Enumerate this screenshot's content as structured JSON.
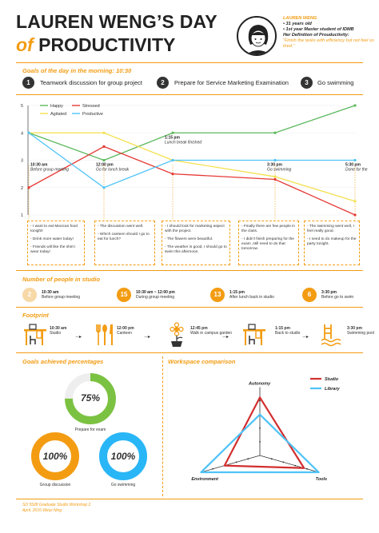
{
  "header": {
    "title_line1": "LAUREN WENG’S DAY",
    "title_of": "of",
    "title_line2": " PRODUCTIVITY"
  },
  "profile": {
    "name": "LAUREN WENG",
    "age": "• 31 years old",
    "role": "• 1st year Master student of IDMB",
    "definition_label": "Her Definition of Prouductivity:",
    "quote": "“Finish the tasks with efficiency but not feel so tired.”"
  },
  "goals": {
    "heading": "Goals of the day in the morning: 10:30",
    "items": [
      {
        "num": "1",
        "text": "Teamwork discussion for group project"
      },
      {
        "num": "2",
        "text": "Prepare for Service Marketing Examination"
      },
      {
        "num": "3",
        "text": "Go swimming"
      }
    ]
  },
  "chart_data": {
    "type": "line",
    "x": [
      "10:30 am",
      "12:00 pm",
      "1:15 pm",
      "3:30 pm",
      "5:30 pm"
    ],
    "ylim": [
      1,
      5
    ],
    "yticks": [
      "1",
      "2",
      "3",
      "4",
      "5"
    ],
    "legend": [
      "Happy",
      "Stressed",
      "Agitated",
      "Productive"
    ],
    "series": [
      {
        "name": "Happy",
        "color": "#5cb85c",
        "values": [
          4,
          3,
          4,
          4,
          5
        ]
      },
      {
        "name": "Stressed",
        "color": "#e53935",
        "values": [
          2,
          3.5,
          2.5,
          2.3,
          1
        ]
      },
      {
        "name": "Agitated",
        "color": "#f4e04d",
        "values": [
          4,
          4,
          3,
          2.4,
          1.5
        ]
      },
      {
        "name": "Productive",
        "color": "#4fc3f7",
        "values": [
          4,
          2,
          3,
          3,
          3
        ]
      }
    ],
    "time_labels": [
      {
        "time": "10:30 am",
        "label": "Before group meeting"
      },
      {
        "time": "12:00 pm",
        "label": "Go for lunch break"
      },
      {
        "time": "1:15 pm",
        "label": "Lunch break finished"
      },
      {
        "time": "3:30 pm",
        "label": "Go swimming"
      },
      {
        "time": "5:30 pm",
        "label": "Done for the day"
      }
    ]
  },
  "notes": [
    [
      "- I want to eat Mexican food tonight!",
      "- Drink more water today!",
      "- Friends will like the shirt I wear today!"
    ],
    [
      "- The discussion went well.",
      "- Which canteen should I go to eat for lunch?"
    ],
    [
      "- I should look for marketing aspect with the project.",
      "- The flowers were beautiful.",
      "- The weather is good, I should go to swim this afternoon."
    ],
    [
      "- Finally there are few people in the class.",
      "- I didn't finish preparing for the exam ,still need to do that tomorrow."
    ],
    [
      "- The swimming went well, I feel really good.",
      "- I need to do makeup for the party tonight."
    ]
  ],
  "people": {
    "heading": "Number of people in studio",
    "items": [
      {
        "count": "2",
        "time": "10:30 am",
        "label": "Before group meeting"
      },
      {
        "count": "15",
        "time": "10:30 am ~ 12:00 pm",
        "label": "During group meeting"
      },
      {
        "count": "13",
        "time": "1:15 pm",
        "label": "After lunch back in studio"
      },
      {
        "count": "6",
        "time": "3:30 pm",
        "label": "Before go to swim"
      }
    ]
  },
  "footprint": {
    "heading": "Footprint",
    "items": [
      {
        "time": "10:30 am",
        "label": "Studio",
        "icon": "desk-icon"
      },
      {
        "time": "12:00 pm",
        "label": "Canteen",
        "icon": "cutlery-icon"
      },
      {
        "time": "12:45 pm",
        "label": "Walk in campus garden",
        "icon": "flower-icon"
      },
      {
        "time": "1:15 pm",
        "label": "Back to studio",
        "icon": "desk-icon"
      },
      {
        "time": "3:30 pm",
        "label": "Swimming pool",
        "icon": "pool-icon"
      }
    ]
  },
  "goals_pct": {
    "heading": "Goals achieved percentages",
    "items": [
      {
        "value": "75%",
        "fraction": 0.75,
        "label": "Prepare for exam",
        "color": "#7cc242"
      },
      {
        "value": "100%",
        "fraction": 1.0,
        "label": "Group discussion",
        "color": "#f39c12"
      },
      {
        "value": "100%",
        "fraction": 1.0,
        "label": "Go swimming",
        "color": "#29b6f6"
      }
    ]
  },
  "workspace": {
    "heading": "Workspace comparison",
    "axes": [
      "Autonomy",
      "Environment",
      "Tools"
    ],
    "legend": [
      {
        "name": "Studio",
        "color": "#d32f2f"
      },
      {
        "name": "Library",
        "color": "#4fc3f7"
      }
    ],
    "series": [
      {
        "name": "Studio",
        "values": [
          0.85,
          0.6,
          0.75
        ]
      },
      {
        "name": "Library",
        "values": [
          0.6,
          1.0,
          1.0
        ]
      }
    ]
  },
  "footer": {
    "line1": "SD 5528 Graduate Studio Workshop 2",
    "line2": "April, 2016  Weiyi Ning"
  }
}
